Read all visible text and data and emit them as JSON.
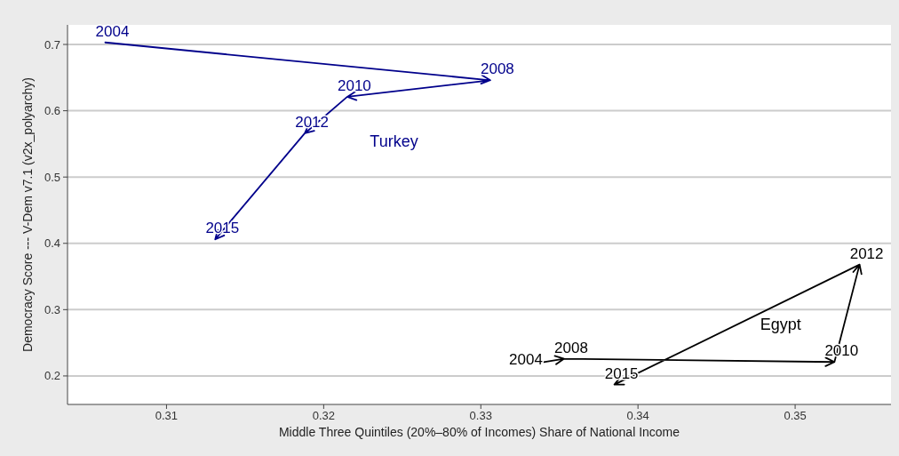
{
  "chart_data": {
    "type": "line",
    "xlabel": "Middle Three Quintiles (20%–80% of Incomes) Share of National Income",
    "ylabel": "Democracy Score --- V-Dem v7.1 (v2x_polyarchy)",
    "xlim": [
      0.3037,
      0.3561
    ],
    "ylim": [
      0.157,
      0.7295
    ],
    "xticks": [
      0.31,
      0.32,
      0.33,
      0.34,
      0.35
    ],
    "yticks": [
      0.2,
      0.3,
      0.4,
      0.5,
      0.6,
      0.7
    ],
    "grid": "y",
    "marker": "none",
    "line_style": "solid",
    "legend": false,
    "series": [
      {
        "name": "Turkey",
        "color": "#00008b",
        "x": [
          0.3061,
          0.3306,
          0.3215,
          0.3188,
          0.3131
        ],
        "values": [
          0.703,
          0.646,
          0.621,
          0.566,
          0.406
        ]
      },
      {
        "name": "Egypt",
        "color": "#000000",
        "x": [
          0.334,
          0.3353,
          0.3525,
          0.3541,
          0.3385
        ],
        "values": [
          0.221,
          0.226,
          0.221,
          0.368,
          0.187
        ]
      }
    ],
    "annotations": [
      {
        "text": "2004",
        "x": 0.3061,
        "y": 0.703
      },
      {
        "text": "2008",
        "x": 0.3306,
        "y": 0.646
      },
      {
        "text": "2010",
        "x": 0.3215,
        "y": 0.621
      },
      {
        "text": "2012",
        "x": 0.3188,
        "y": 0.566
      },
      {
        "text": "2015",
        "x": 0.3131,
        "y": 0.406
      },
      {
        "text": "2004",
        "x": 0.334,
        "y": 0.221
      },
      {
        "text": "2008",
        "x": 0.3353,
        "y": 0.226
      },
      {
        "text": "2010",
        "x": 0.3525,
        "y": 0.221
      },
      {
        "text": "2012",
        "x": 0.3541,
        "y": 0.368
      },
      {
        "text": "2015",
        "x": 0.3385,
        "y": 0.187
      }
    ]
  }
}
